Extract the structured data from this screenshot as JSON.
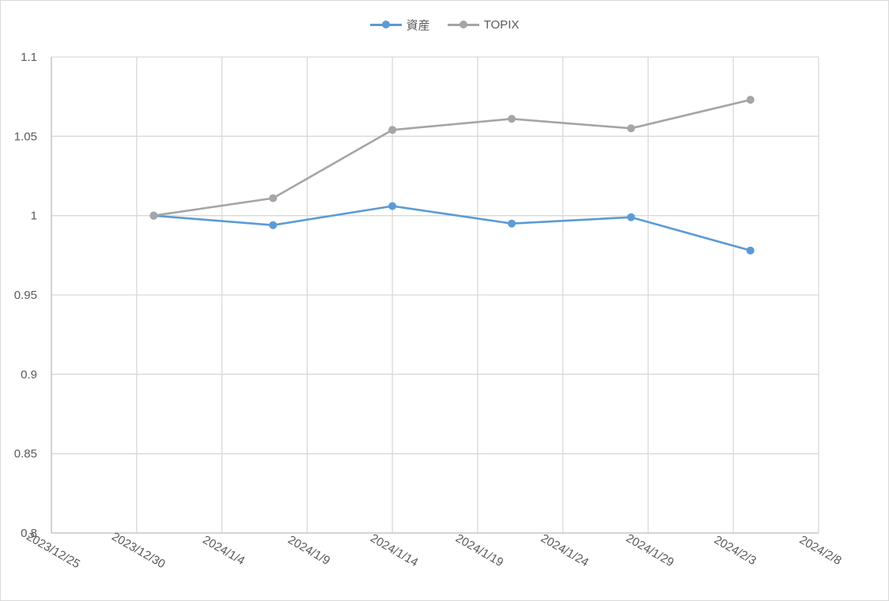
{
  "chart_data": {
    "type": "line",
    "title": "",
    "xlabel": "",
    "ylabel": "",
    "x_axis": {
      "type": "date",
      "min": "2023/12/25",
      "max": "2024/2/8",
      "tick_labels": [
        "2023/12/25",
        "2023/12/30",
        "2024/1/4",
        "2024/1/9",
        "2024/1/14",
        "2024/1/19",
        "2024/1/24",
        "2024/1/29",
        "2024/2/3",
        "2024/2/8"
      ]
    },
    "y_axis": {
      "min": 0.8,
      "max": 1.1,
      "step": 0.05,
      "tick_labels": [
        "0.8",
        "0.85",
        "0.9",
        "0.95",
        "1",
        "1.05",
        "1.1"
      ]
    },
    "grid": true,
    "legend": "top",
    "x": [
      "2023/12/31",
      "2024/1/7",
      "2024/1/14",
      "2024/1/21",
      "2024/1/28",
      "2024/2/4"
    ],
    "series": [
      {
        "name": "資産",
        "color": "#5b9bd5",
        "values": [
          1.0,
          0.994,
          1.006,
          0.995,
          0.999,
          0.978
        ]
      },
      {
        "name": "TOPIX",
        "color": "#a5a5a5",
        "values": [
          1.0,
          1.011,
          1.054,
          1.061,
          1.055,
          1.073
        ]
      }
    ]
  }
}
